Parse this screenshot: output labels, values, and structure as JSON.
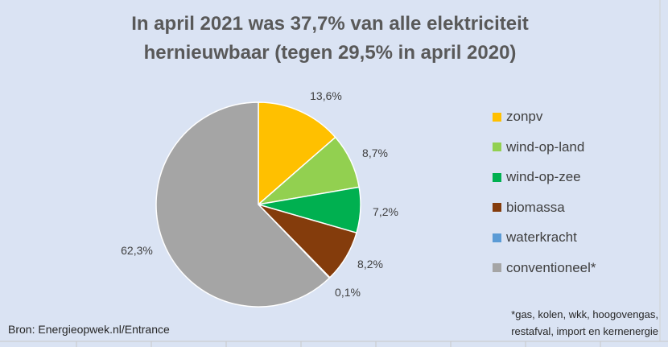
{
  "chart_data": {
    "type": "pie",
    "title_line1": "In april 2021 was 37,7% van alle elektriciteit",
    "title_line2": "hernieuwbaar (tegen 29,5% in april 2020)",
    "slices": [
      {
        "name": "zonpv",
        "value": 13.6,
        "label": "13,6%",
        "color": "#ffc000"
      },
      {
        "name": "wind-op-land",
        "value": 8.7,
        "label": "8,7%",
        "color": "#92d050"
      },
      {
        "name": "wind-op-zee",
        "value": 7.2,
        "label": "7,2%",
        "color": "#00b050"
      },
      {
        "name": "biomassa",
        "value": 8.2,
        "label": "8,2%",
        "color": "#843c0c"
      },
      {
        "name": "waterkracht",
        "value": 0.1,
        "label": "0,1%",
        "color": "#5b9bd5"
      },
      {
        "name": "conventioneel*",
        "value": 62.3,
        "label": "62,3%",
        "color": "#a5a5a5"
      }
    ],
    "legend_position": "right"
  },
  "source_text": "Bron: Energieopwek.nl/Entrance",
  "footnote_line1": "*gas, kolen, wkk, hoogovengas,",
  "footnote_line2": "restafval, import en kernenergie",
  "colors": {
    "background": "#dae3f3",
    "title": "#595959"
  }
}
